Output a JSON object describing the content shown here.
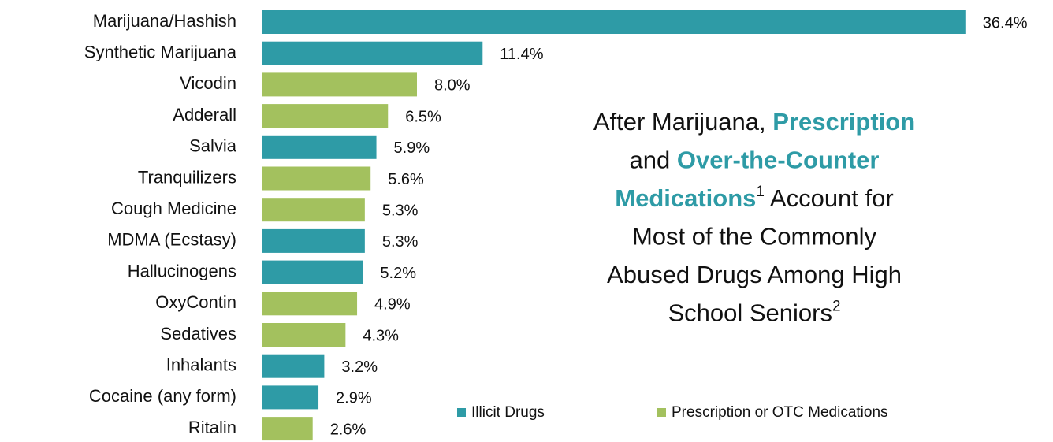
{
  "chart_data": {
    "type": "bar",
    "orientation": "horizontal",
    "categories": [
      "Marijuana/Hashish",
      "Synthetic Marijuana",
      "Vicodin",
      "Adderall",
      "Salvia",
      "Tranquilizers",
      "Cough Medicine",
      "MDMA (Ecstasy)",
      "Hallucinogens",
      "OxyContin",
      "Sedatives",
      "Inhalants",
      "Cocaine (any form)",
      "Ritalin"
    ],
    "series": [
      {
        "name": "Illicit Drugs",
        "color": "#2e9ba6",
        "values": [
          36.4,
          11.4,
          null,
          null,
          5.9,
          null,
          null,
          5.3,
          5.2,
          null,
          null,
          3.2,
          2.9,
          null
        ],
        "value_labels": [
          "36.4%",
          "11.4%",
          null,
          null,
          "5.9%",
          null,
          null,
          "5.3%",
          "5.2%",
          null,
          null,
          "3.2%",
          "2.9%",
          null
        ]
      },
      {
        "name": "Prescription or OTC Medications",
        "color": "#a3c15e",
        "values": [
          null,
          null,
          8.0,
          6.5,
          null,
          5.6,
          5.3,
          null,
          null,
          4.9,
          4.3,
          null,
          null,
          2.6
        ],
        "value_labels": [
          null,
          null,
          "8.0%",
          "6.5%",
          null,
          "5.6%",
          "5.3%",
          null,
          null,
          "4.9%",
          "4.3%",
          null,
          null,
          "2.6%"
        ]
      }
    ],
    "title_lines": [
      [
        {
          "text": "After Marijuana, ",
          "color": "#111111"
        },
        {
          "text": "Prescription",
          "color": "#2e9ba6"
        }
      ],
      [
        {
          "text": "and ",
          "color": "#111111"
        },
        {
          "text": "Over-the-Counter",
          "color": "#2e9ba6"
        }
      ],
      [
        {
          "text": "Medications",
          "color": "#2e9ba6"
        },
        {
          "text": "1",
          "color": "#111111",
          "sup": true
        },
        {
          "text": " Account for",
          "color": "#111111"
        }
      ],
      [
        {
          "text": "Most of the Commonly",
          "color": "#111111"
        }
      ],
      [
        {
          "text": "Abused Drugs Among High",
          "color": "#111111"
        }
      ],
      [
        {
          "text": "School Seniors",
          "color": "#111111"
        },
        {
          "text": "2",
          "color": "#111111",
          "sup": true
        }
      ]
    ],
    "legend": "bottom-right"
  }
}
